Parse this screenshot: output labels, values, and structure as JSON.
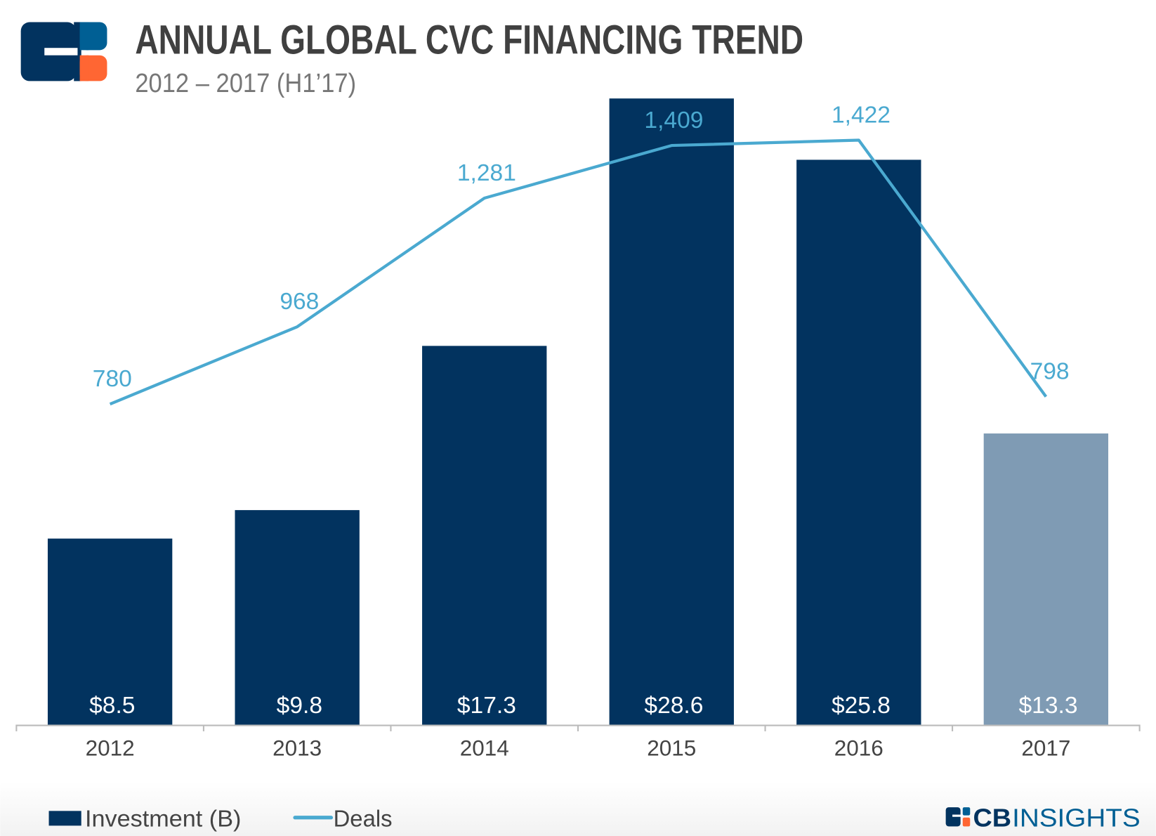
{
  "header": {
    "title": "ANNUAL GLOBAL CVC FINANCING TREND",
    "subtitle": "2012 – 2017 (H1’17)"
  },
  "brand": {
    "logo_text_cb": "CB",
    "logo_text_insights": "INSIGHTS"
  },
  "colors": {
    "bar": "#02335f",
    "bar_partial": "#7f9bb4",
    "line": "#4aa9d0",
    "logo_blue": "#005f94",
    "logo_orange": "#ff6633",
    "text": "#444444"
  },
  "chart_data": {
    "type": "bar+line",
    "title": "ANNUAL GLOBAL CVC FINANCING TREND",
    "subtitle": "2012 – 2017 (H1’17)",
    "categories": [
      "2012",
      "2013",
      "2014",
      "2015",
      "2016",
      "2017"
    ],
    "series": [
      {
        "name": "Investment (B)",
        "type": "bar",
        "values": [
          8.5,
          9.8,
          17.3,
          28.6,
          25.8,
          13.3
        ],
        "labels": [
          "$8.5",
          "$9.8",
          "$17.3",
          "$28.6",
          "$25.8",
          "$13.3"
        ]
      },
      {
        "name": "Deals",
        "type": "line",
        "values": [
          780,
          968,
          1281,
          1409,
          1422,
          798
        ],
        "labels": [
          "780",
          "968",
          "1,281",
          "1,409",
          "1,422",
          "798"
        ]
      }
    ],
    "highlight_partial_year": "2017",
    "legend": {
      "placement": "bottom-left",
      "items": [
        "Investment (B)",
        "Deals"
      ]
    },
    "grid": false
  }
}
